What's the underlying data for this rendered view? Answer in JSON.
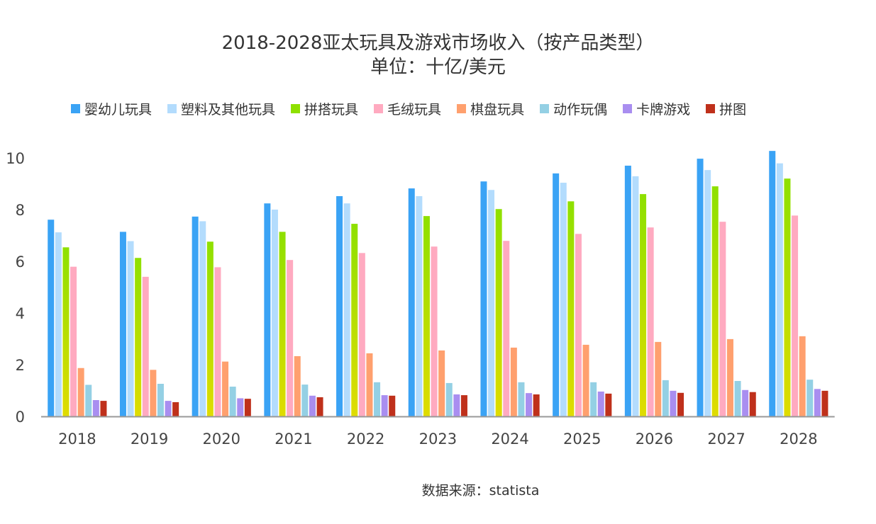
{
  "chart_data": {
    "type": "bar",
    "title": "2018-2028亚太玩具及游戏市场收入（按产品类型）",
    "subtitle": "单位：十亿/美元",
    "xlabel": "",
    "ylabel": "",
    "ylim": [
      0,
      10
    ],
    "yticks": [
      0,
      2,
      4,
      6,
      8,
      10
    ],
    "grid": false,
    "legend_position": "top",
    "categories": [
      "2018",
      "2019",
      "2020",
      "2021",
      "2022",
      "2023",
      "2024",
      "2025",
      "2026",
      "2027",
      "2028"
    ],
    "series": [
      {
        "name": "婴幼儿玩具",
        "color": "#3aa3f5",
        "values": [
          7.61,
          7.14,
          7.73,
          8.24,
          8.52,
          8.82,
          9.09,
          9.4,
          9.7,
          9.97,
          10.27
        ]
      },
      {
        "name": "塑料及其他玩具",
        "color": "#b3dcfd",
        "values": [
          7.12,
          6.78,
          7.55,
          8.0,
          8.24,
          8.52,
          8.76,
          9.04,
          9.29,
          9.53,
          9.79
        ]
      },
      {
        "name": "拼搭玩具",
        "color": "#8ee000",
        "values": [
          6.54,
          6.13,
          6.76,
          7.14,
          7.45,
          7.75,
          8.02,
          8.32,
          8.6,
          8.9,
          9.2
        ]
      },
      {
        "name": "毛绒玩具",
        "color": "#ffaac0",
        "values": [
          5.79,
          5.4,
          5.77,
          6.05,
          6.32,
          6.57,
          6.79,
          7.06,
          7.31,
          7.53,
          7.77
        ]
      },
      {
        "name": "棋盘玩具",
        "color": "#ffa06e",
        "values": [
          1.87,
          1.8,
          2.12,
          2.33,
          2.44,
          2.55,
          2.66,
          2.77,
          2.88,
          2.99,
          3.1
        ]
      },
      {
        "name": "动作玩偶",
        "color": "#94d0e4",
        "values": [
          1.22,
          1.26,
          1.15,
          1.23,
          1.32,
          1.29,
          1.32,
          1.32,
          1.4,
          1.37,
          1.42
        ]
      },
      {
        "name": "卡牌游戏",
        "color": "#a98ef0",
        "values": [
          0.63,
          0.6,
          0.7,
          0.8,
          0.82,
          0.85,
          0.9,
          0.96,
          0.99,
          1.02,
          1.06
        ]
      },
      {
        "name": "拼图",
        "color": "#bf301b",
        "values": [
          0.6,
          0.55,
          0.68,
          0.74,
          0.8,
          0.82,
          0.85,
          0.88,
          0.91,
          0.94,
          0.99
        ]
      }
    ],
    "source": "数据来源：statista"
  }
}
